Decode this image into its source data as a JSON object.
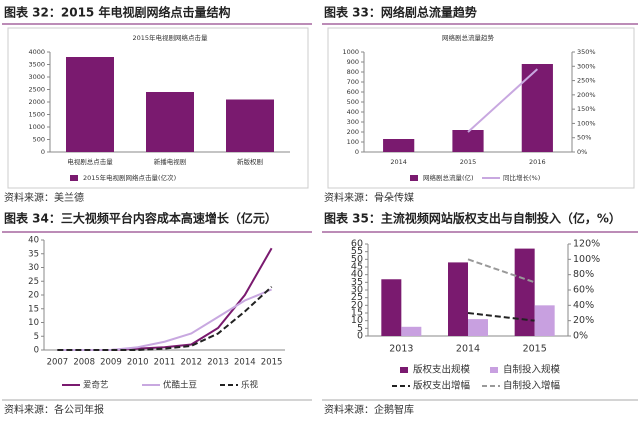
{
  "chart_data": [
    {
      "type": "bar",
      "title": "图表 32：2015 年电视剧网络点击量结构",
      "subtitle": "2015年电视剧网络点击量",
      "source": "资料来源：美兰德",
      "categories": [
        "电视剧总点击量",
        "新播电视剧",
        "新版权剧"
      ],
      "series": [
        {
          "name": "2015年电视剧网络点击量(亿次)",
          "color": "#7a1a6f",
          "kind": "bar",
          "values": [
            3800,
            2400,
            2100
          ]
        }
      ],
      "ylim": [
        0,
        4000
      ],
      "yticks": [
        0,
        500,
        1000,
        1500,
        2000,
        2500,
        3000,
        3500,
        4000
      ]
    },
    {
      "type": "combo",
      "title": "图表 33：网络剧总流量趋势",
      "subtitle": "网络剧总流量趋势",
      "source": "资料来源：骨朵传媒",
      "categories": [
        "2014",
        "2015",
        "2016"
      ],
      "series": [
        {
          "name": "网络剧总流量(亿)",
          "color": "#7a1a6f",
          "kind": "bar",
          "values": [
            130,
            220,
            880
          ]
        },
        {
          "name": "同比增长(%)",
          "color": "#c8a8e0",
          "kind": "line",
          "axis": "y2",
          "values": [
            null,
            70,
            290
          ]
        }
      ],
      "ylim": [
        0,
        1000
      ],
      "yticks": [
        0,
        100,
        200,
        300,
        400,
        500,
        600,
        700,
        800,
        900,
        1000
      ],
      "y2lim": [
        0,
        350
      ],
      "y2ticks": [
        {
          "value": 0,
          "label": "0%"
        },
        {
          "value": 50,
          "label": "50%"
        },
        {
          "value": 100,
          "label": "100%"
        },
        {
          "value": 150,
          "label": "150%"
        },
        {
          "value": 200,
          "label": "200%"
        },
        {
          "value": 250,
          "label": "250%"
        },
        {
          "value": 300,
          "label": "300%"
        },
        {
          "value": 350,
          "label": "350%"
        }
      ]
    },
    {
      "type": "line",
      "title": "图表 34：三大视频平台内容成本高速增长（亿元）",
      "source": "资料来源：各公司年报",
      "categories": [
        "2007",
        "2008",
        "2009",
        "2010",
        "2011",
        "2012",
        "2013",
        "2014",
        "2015"
      ],
      "series": [
        {
          "name": "爱奇艺",
          "color": "#7a1a6f",
          "kind": "line",
          "values": [
            0,
            0,
            0,
            0.5,
            1,
            2,
            8,
            20,
            37
          ]
        },
        {
          "name": "优酷土豆",
          "color": "#c8a8e0",
          "kind": "line",
          "values": [
            0,
            0,
            0,
            1,
            3,
            6,
            12,
            18,
            22
          ]
        },
        {
          "name": "乐视",
          "color": "#222222",
          "kind": "line",
          "style": "dashed",
          "values": [
            0,
            0,
            0,
            0,
            0.5,
            1.5,
            6,
            14,
            23
          ]
        }
      ],
      "ylim": [
        0,
        40
      ],
      "yticks": [
        0,
        5,
        10,
        15,
        20,
        25,
        30,
        35,
        40
      ]
    },
    {
      "type": "combo",
      "title": "图表 35：主流视频网站版权支出与自制投入（亿，%）",
      "source": "资料来源：企鹅智库",
      "categories": [
        "2013",
        "2014",
        "2015"
      ],
      "series": [
        {
          "name": "版权支出规模",
          "color": "#7a1a6f",
          "kind": "bar",
          "values": [
            37,
            48,
            57
          ]
        },
        {
          "name": "自制投入规模",
          "color": "#c8a0e0",
          "kind": "bar",
          "values": [
            6,
            11,
            20
          ]
        },
        {
          "name": "版权支出增幅",
          "color": "#222222",
          "kind": "line",
          "style": "dashed",
          "axis": "y2",
          "values": [
            null,
            30,
            20
          ]
        },
        {
          "name": "自制投入增幅",
          "color": "#999999",
          "kind": "line",
          "style": "dashed",
          "axis": "y2",
          "values": [
            null,
            100,
            70
          ]
        }
      ],
      "ylim": [
        0,
        60
      ],
      "yticks": [
        0,
        5,
        10,
        15,
        20,
        25,
        30,
        35,
        40,
        45,
        50,
        55,
        60
      ],
      "y2lim": [
        0,
        120
      ],
      "y2ticks": [
        {
          "value": 0,
          "label": "0%"
        },
        {
          "value": 20,
          "label": "20%"
        },
        {
          "value": 40,
          "label": "40%"
        },
        {
          "value": 60,
          "label": "60%"
        },
        {
          "value": 80,
          "label": "80%"
        },
        {
          "value": 100,
          "label": "100%"
        },
        {
          "value": 120,
          "label": "120%"
        }
      ]
    }
  ]
}
